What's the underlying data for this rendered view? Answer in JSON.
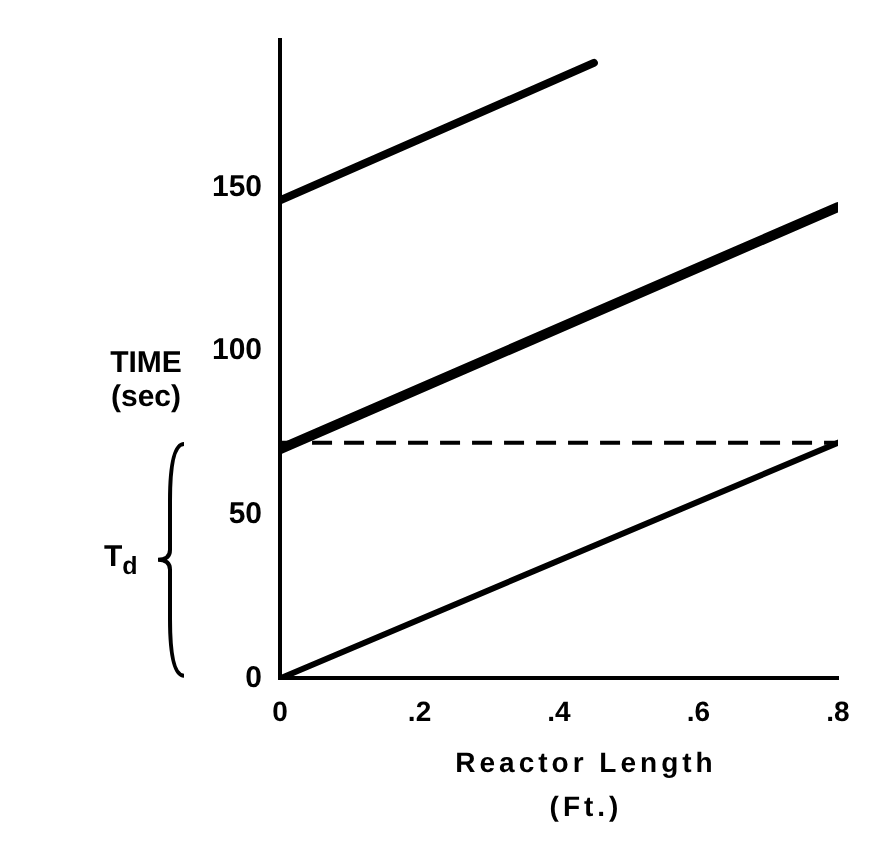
{
  "chart_data": {
    "type": "line",
    "xlabel": "Reactor Length (Ft.)",
    "ylabel": "TIME (sec)",
    "series": [
      {
        "color": "#000000",
        "x": [
          0,
          0.8
        ],
        "values": [
          0,
          72
        ]
      },
      {
        "color": "#000000",
        "x": [
          0,
          0.8
        ],
        "values": [
          70,
          144
        ]
      },
      {
        "color": "#000000",
        "x": [
          0,
          0.45
        ],
        "values": [
          146,
          188
        ]
      }
    ],
    "xlim": [
      0,
      0.8
    ],
    "xticks": [
      0,
      {
        "value": 0.2,
        "label": ".2"
      },
      {
        "value": 0.4,
        "label": ".4"
      },
      {
        "value": 0.6,
        "label": ".6"
      },
      {
        "value": 0.8,
        "label": ".8"
      }
    ],
    "ylim": [
      0,
      195
    ],
    "yticks": [
      0,
      50,
      100,
      150
    ],
    "ref_lines": [
      {
        "axis": "y",
        "value": 72,
        "line_style": "dashed",
        "color": "#000000"
      }
    ],
    "annotations": [
      "T$_{d}$"
    ],
    "grid": false,
    "legend": false,
    "marker": "none",
    "line_style": "solid"
  }
}
